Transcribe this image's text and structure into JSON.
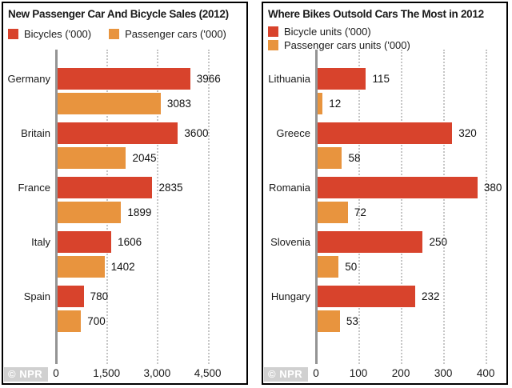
{
  "colors": {
    "bicycle_red": "#d8432c",
    "car_orange": "#e8943e",
    "axis": "#949494",
    "grid": "#c6c6c6",
    "panel_border": "#000000",
    "watermark_text": "#ffffff"
  },
  "watermark": "© NPR",
  "chart_data": [
    {
      "type": "bar",
      "orientation": "horizontal",
      "title": "New Passenger Car And Bicycle Sales (2012)",
      "legend_layout": "row",
      "categories": [
        "Germany",
        "Britain",
        "France",
        "Italy",
        "Spain"
      ],
      "series": [
        {
          "name": "Bicycles ('000)",
          "color": "#d8432c",
          "values": [
            3966,
            3600,
            2835,
            1606,
            780
          ]
        },
        {
          "name": "Passenger cars ('000)",
          "color": "#e8943e",
          "values": [
            3083,
            2045,
            1899,
            1402,
            700
          ]
        }
      ],
      "value_labels": true,
      "grid": "vertical-dotted",
      "xlim": [
        0,
        5600
      ],
      "xticks": [
        0,
        1500,
        3000,
        4500
      ],
      "xtick_labels": [
        "0",
        "1,500",
        "3,000",
        "4,500"
      ],
      "watermark": "© NPR"
    },
    {
      "type": "bar",
      "orientation": "horizontal",
      "title": "Where Bikes Outsold Cars The Most in 2012",
      "legend_layout": "col",
      "categories": [
        "Lithuania",
        "Greece",
        "Romania",
        "Slovenia",
        "Hungary"
      ],
      "series": [
        {
          "name": "Bicycle units ('000)",
          "color": "#d8432c",
          "values": [
            115,
            320,
            380,
            250,
            232
          ]
        },
        {
          "name": "Passenger cars units ('000)",
          "color": "#e8943e",
          "values": [
            12,
            58,
            72,
            50,
            53
          ]
        }
      ],
      "value_labels": true,
      "grid": "vertical-dotted",
      "xlim": [
        0,
        445
      ],
      "xticks": [
        0,
        100,
        200,
        300,
        400
      ],
      "xtick_labels": [
        "0",
        "100",
        "200",
        "300",
        "400"
      ],
      "watermark": "© NPR"
    }
  ]
}
